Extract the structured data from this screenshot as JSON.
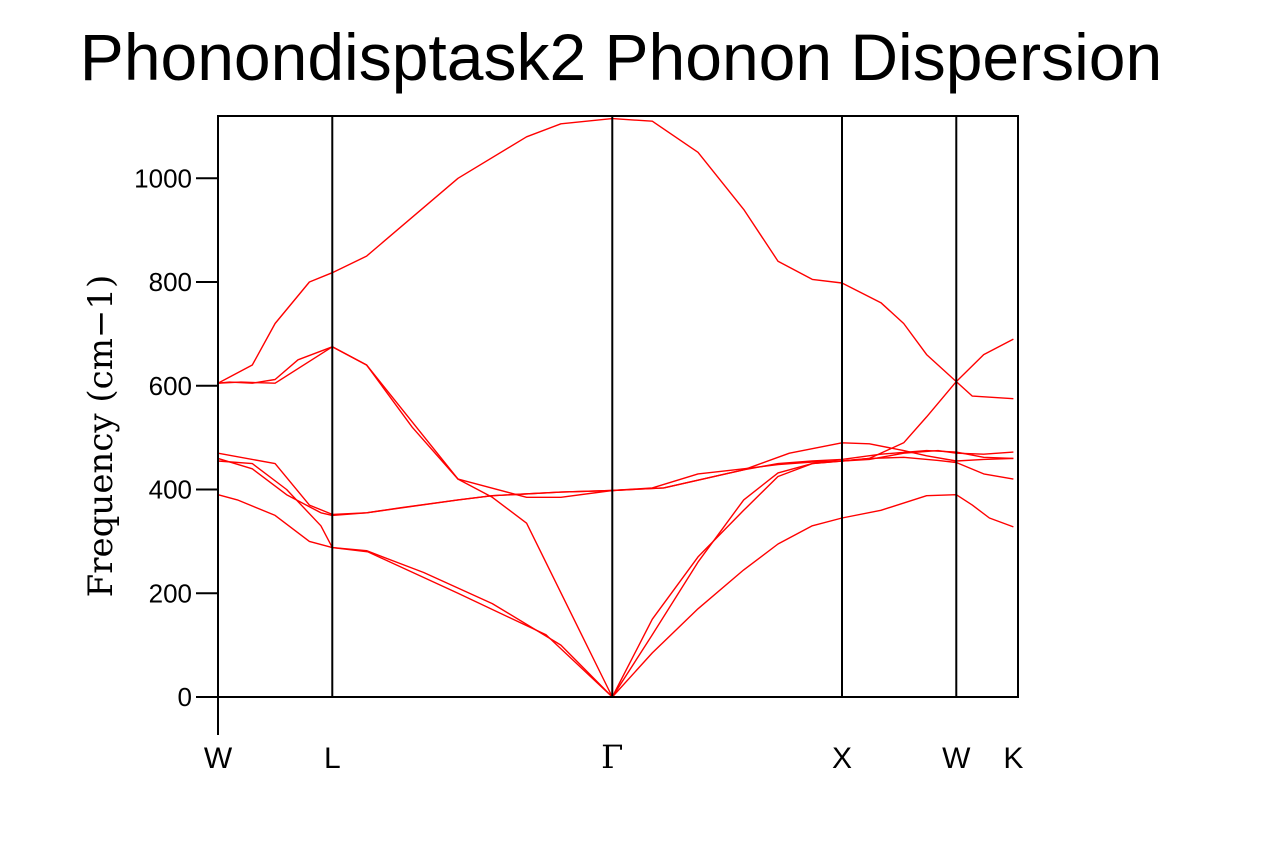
{
  "chart_data": {
    "type": "line",
    "title": "Phonondisptask2 Phonon Dispersion",
    "xlabel": "",
    "ylabel": "Frequency (cm−1)",
    "ylim": [
      -80,
      1120
    ],
    "yticks": [
      0,
      200,
      400,
      600,
      800,
      1000
    ],
    "ytick_labels": [
      "0",
      "200",
      "400",
      "600",
      "800",
      "1000"
    ],
    "xlim": [
      0,
      7
    ],
    "high_symmetry_points": [
      {
        "label": "W",
        "x": 0
      },
      {
        "label": "L",
        "x": 1
      },
      {
        "label": "Γ",
        "x": 3.45
      },
      {
        "label": "X",
        "x": 5.46
      },
      {
        "label": "W",
        "x": 6.46
      },
      {
        "label": "K",
        "x": 6.96
      }
    ],
    "grid": false,
    "legend": "none",
    "line_color": "#ff0000",
    "frame_color": "#000000",
    "series": [
      {
        "x": [
          0,
          0.17,
          0.5,
          0.8,
          1.0,
          1.31,
          2.1,
          2.87,
          3.45,
          3.8,
          4.2,
          4.6,
          4.9,
          5.2,
          5.46,
          5.8,
          6.2,
          6.46,
          6.6,
          6.75,
          6.96
        ],
        "values": [
          390,
          380,
          350,
          300,
          288,
          280,
          200,
          120,
          0,
          85,
          170,
          245,
          295,
          330,
          345,
          360,
          388,
          390,
          370,
          345,
          328
        ]
      },
      {
        "x": [
          0,
          0.3,
          0.6,
          0.9,
          1.0,
          1.3,
          1.8,
          2.4,
          3.0,
          3.45,
          3.8,
          4.2,
          4.6,
          4.9,
          5.2,
          5.46,
          5.7,
          6.0,
          6.3,
          6.46,
          6.7,
          6.96
        ],
        "values": [
          455,
          450,
          400,
          330,
          288,
          282,
          240,
          180,
          100,
          0,
          120,
          260,
          380,
          432,
          450,
          455,
          460,
          462,
          456,
          452,
          430,
          420
        ]
      },
      {
        "x": [
          0,
          0.3,
          0.6,
          0.9,
          1.0,
          1.3,
          2.1,
          2.4,
          3.0,
          3.45,
          3.9,
          4.6,
          5.0,
          5.46,
          5.7,
          6.0,
          6.2,
          6.46,
          6.7,
          6.96
        ],
        "values": [
          460,
          440,
          390,
          355,
          350,
          355,
          380,
          388,
          395,
          398,
          403,
          438,
          470,
          490,
          488,
          475,
          465,
          455,
          458,
          460
        ]
      },
      {
        "x": [
          0,
          0.5,
          0.8,
          1.0,
          1.3,
          1.6,
          2.1,
          2.4,
          3.0,
          3.45,
          3.9,
          4.6,
          4.9,
          5.2,
          5.46,
          5.8,
          6.2,
          6.46,
          6.7,
          6.96
        ],
        "values": [
          470,
          450,
          370,
          352,
          355,
          365,
          380,
          388,
          395,
          398,
          403,
          438,
          450,
          455,
          458,
          468,
          475,
          472,
          462,
          460
        ]
      },
      {
        "x": [
          0,
          0.1,
          0.3,
          0.5,
          0.7,
          1.0,
          1.3,
          1.7,
          2.1,
          2.4,
          2.7,
          3.45,
          3.8,
          4.2,
          4.6,
          4.9,
          5.2,
          5.46,
          5.7,
          6.0,
          6.3,
          6.46,
          6.7,
          6.96
        ],
        "values": [
          605,
          607,
          605,
          612,
          650,
          675,
          640,
          520,
          420,
          385,
          335,
          0,
          150,
          270,
          360,
          425,
          450,
          455,
          458,
          470,
          475,
          470,
          468,
          472
        ]
      },
      {
        "x": [
          0,
          0.3,
          0.5,
          0.8,
          1.0,
          1.3,
          2.1,
          2.7,
          3.0,
          3.45,
          3.8,
          4.2,
          4.6,
          4.9,
          5.2,
          5.46,
          5.8,
          6.0,
          6.2,
          6.46,
          6.6,
          6.96
        ],
        "values": [
          605,
          640,
          720,
          800,
          818,
          850,
          1000,
          1080,
          1105,
          1115,
          1110,
          1050,
          940,
          840,
          805,
          798,
          760,
          720,
          660,
          608,
          580,
          575
        ]
      },
      {
        "x": [
          0,
          0.2,
          0.5,
          1.0,
          1.3,
          2.1,
          2.7,
          3.0,
          3.45,
          3.8,
          4.2,
          4.6,
          4.9,
          5.2,
          5.46,
          5.7,
          6.0,
          6.2,
          6.46,
          6.7,
          6.96
        ],
        "values": [
          605,
          607,
          605,
          675,
          640,
          420,
          385,
          385,
          398,
          403,
          430,
          440,
          448,
          453,
          455,
          460,
          490,
          540,
          608,
          660,
          690
        ]
      }
    ]
  }
}
